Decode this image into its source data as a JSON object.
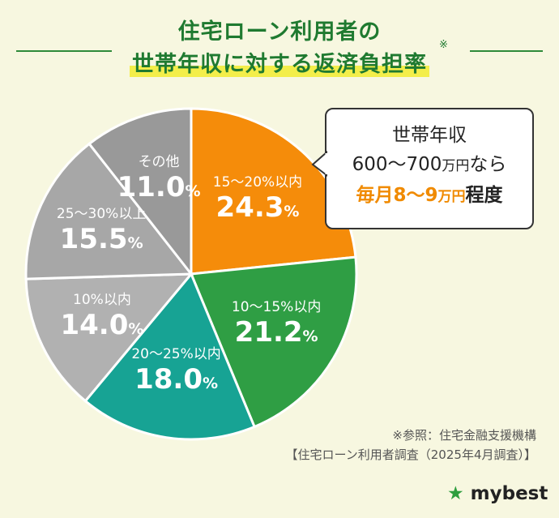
{
  "title": {
    "line1": "住宅ローン利用者の",
    "line2": "世帯年収に対する返済負担率",
    "note_mark": "※"
  },
  "callout": {
    "line1": "世帯年収",
    "line2_num": "600〜700",
    "line2_unit": "万円",
    "line2_suffix": "なら",
    "line3_num": "毎月8〜9",
    "line3_unit": "万円",
    "line3_suffix": "程度"
  },
  "source": {
    "line1": "※参照：住宅金融支援機構",
    "line2": "【住宅ローン利用者調査（2025年4月調査）】"
  },
  "logo": {
    "star": "★",
    "text": "mybest"
  },
  "colors": {
    "orange": "#f58c0a",
    "green": "#2f9e44",
    "teal": "#17a394",
    "gray_light": "#b1b1b1",
    "gray_mid": "#a7a7a7",
    "gray_dark": "#999999"
  },
  "chart_data": {
    "type": "pie",
    "slices": [
      {
        "label": "15〜20%以内",
        "value": 24.3,
        "unit": "%",
        "color": "#f58c0a"
      },
      {
        "label": "10〜15%以内",
        "value": 21.2,
        "unit": "%",
        "color": "#2f9e44"
      },
      {
        "label": "20〜25%以内",
        "value": 18.0,
        "unit": "%",
        "color": "#17a394"
      },
      {
        "label": "10%以内",
        "value": 14.0,
        "unit": "%",
        "color": "#b1b1b1"
      },
      {
        "label": "25〜30%以上",
        "value": 15.5,
        "unit": "%",
        "color": "#a7a7a7"
      },
      {
        "label": "その他",
        "value": 11.0,
        "unit": "%",
        "color": "#999999"
      }
    ]
  }
}
